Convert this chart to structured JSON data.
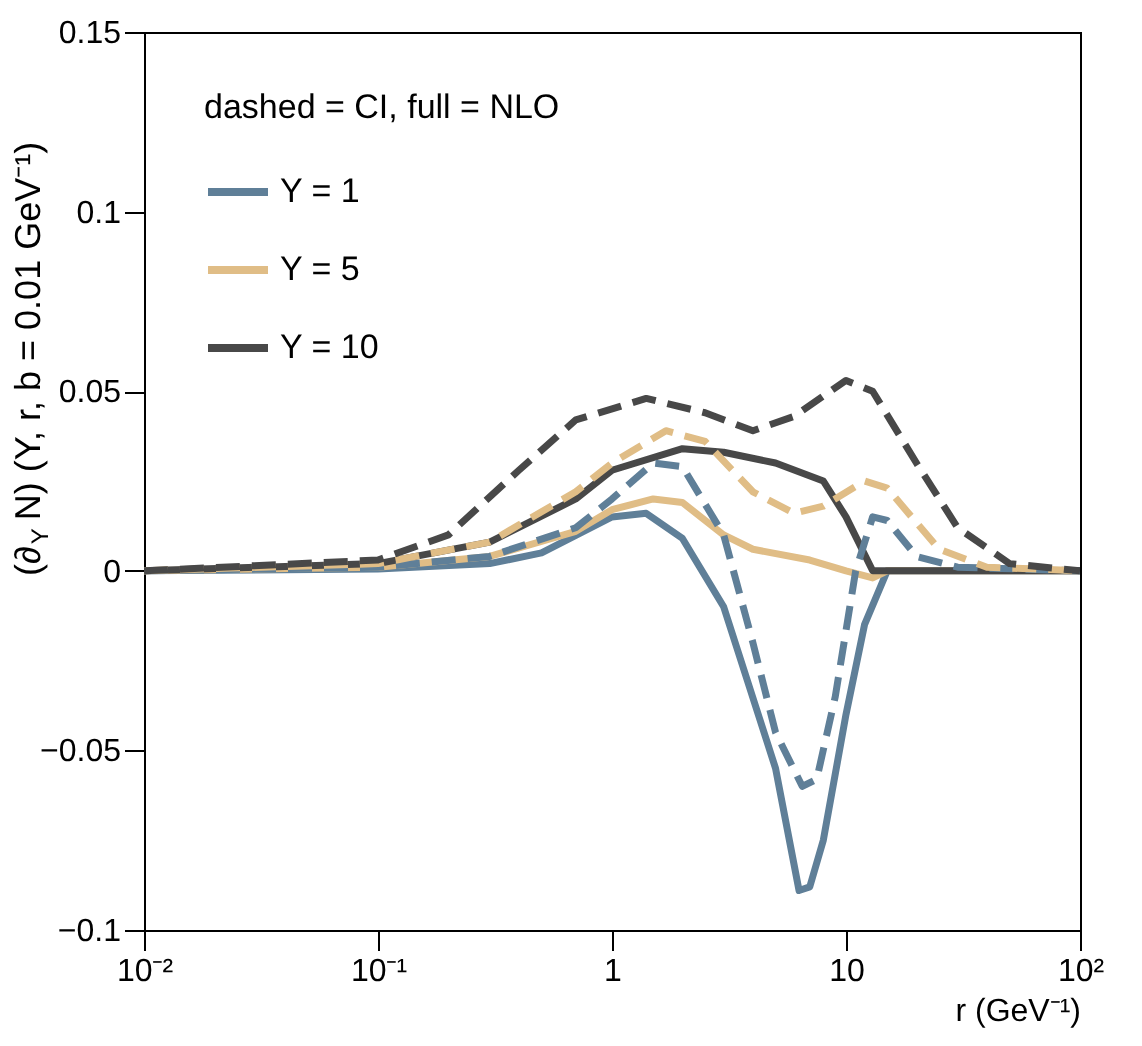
{
  "chart_data": {
    "type": "line",
    "xlabel": "r (GeV⁻¹)",
    "ylabel": "(∂$_{Y}$ N) (Y, r, b = 0.01 GeV⁻¹)",
    "legend_title": "dashed = CI, full = NLO",
    "legend": "top left",
    "log": "x",
    "grid": false,
    "marker": "none",
    "xlim": [
      0.01,
      100
    ],
    "xticks": [
      {
        "value": 0.01,
        "label": "10⁻²"
      },
      {
        "value": 0.1,
        "label": "10⁻¹"
      },
      1,
      10,
      {
        "value": 100,
        "label": "10²"
      }
    ],
    "ylim": [
      -0.1,
      0.15
    ],
    "yticks": [
      {
        "value": -0.1,
        "label": "−0.1"
      },
      {
        "value": -0.05,
        "label": "−0.05"
      },
      0,
      0.05,
      0.1,
      0.15
    ],
    "series": [
      {
        "name": "Y =  1",
        "color": "#5f7f98",
        "line_style": "solid",
        "x": [
          0.01,
          0.1,
          0.3,
          0.5,
          1,
          1.4,
          2,
          3,
          5,
          6.3,
          7,
          8,
          10,
          12,
          15,
          100
        ],
        "values": [
          0,
          0.0005,
          0.002,
          0.005,
          0.015,
          0.016,
          0.009,
          -0.01,
          -0.055,
          -0.089,
          -0.088,
          -0.075,
          -0.04,
          -0.015,
          0,
          0
        ]
      },
      {
        "name": "Y =  5",
        "color": "#e0bd86",
        "line_style": "solid",
        "x": [
          0.01,
          0.1,
          0.3,
          0.7,
          1,
          1.5,
          2,
          3,
          4,
          7,
          10,
          13,
          15,
          100
        ],
        "values": [
          0,
          0.001,
          0.004,
          0.011,
          0.017,
          0.02,
          0.019,
          0.01,
          0.006,
          0.003,
          0,
          -0.002,
          0,
          0
        ]
      },
      {
        "name": "Y = 10",
        "color": "#484848",
        "line_style": "solid",
        "x": [
          0.01,
          0.1,
          0.3,
          0.7,
          1,
          2,
          3,
          5,
          8,
          10,
          13,
          15,
          100
        ],
        "values": [
          0,
          0.002,
          0.008,
          0.02,
          0.028,
          0.034,
          0.033,
          0.03,
          0.025,
          0.015,
          0,
          0,
          0
        ]
      },
      {
        "color": "#5f7f98",
        "line_style": "dashed",
        "x": [
          0.01,
          0.1,
          0.3,
          0.7,
          1,
          1.5,
          2,
          3,
          4,
          5,
          6.5,
          7.5,
          9,
          11,
          13,
          15,
          20,
          30,
          100
        ],
        "values": [
          0,
          0.001,
          0.004,
          0.012,
          0.02,
          0.03,
          0.029,
          0.01,
          -0.02,
          -0.045,
          -0.06,
          -0.058,
          -0.035,
          0,
          0.015,
          0.014,
          0.004,
          0.001,
          0
        ]
      },
      {
        "color": "#e0bd86",
        "line_style": "dashed",
        "x": [
          0.01,
          0.1,
          0.3,
          0.7,
          1,
          1.7,
          2.5,
          4,
          6,
          8,
          12,
          15,
          25,
          40,
          100
        ],
        "values": [
          0,
          0.002,
          0.008,
          0.022,
          0.03,
          0.039,
          0.036,
          0.022,
          0.016,
          0.018,
          0.025,
          0.023,
          0.006,
          0.001,
          0
        ]
      },
      {
        "color": "#484848",
        "line_style": "dashed",
        "x": [
          0.01,
          0.1,
          0.2,
          0.4,
          0.7,
          1.4,
          2.5,
          4,
          6,
          10,
          13,
          20,
          30,
          50,
          100
        ],
        "values": [
          0,
          0.003,
          0.01,
          0.028,
          0.042,
          0.048,
          0.044,
          0.039,
          0.043,
          0.053,
          0.05,
          0.03,
          0.012,
          0.002,
          0
        ]
      }
    ]
  }
}
